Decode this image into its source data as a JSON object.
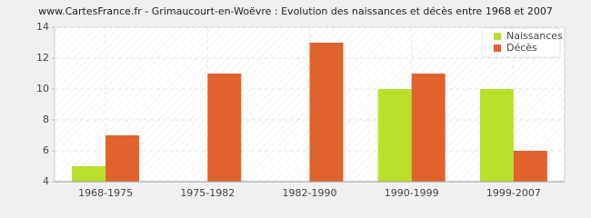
{
  "chart_data": {
    "type": "bar",
    "title": "www.CartesFrance.fr - Grimaucourt-en-Woëvre : Evolution des naissances et décès entre 1968 et 2007",
    "categories": [
      "1968-1975",
      "1975-1982",
      "1982-1990",
      "1990-1999",
      "1999-2007"
    ],
    "series": [
      {
        "name": "Naissances",
        "color": "#bbe02c",
        "values": [
          5,
          4,
          4,
          10,
          10
        ]
      },
      {
        "name": "Décès",
        "color": "#e0622d",
        "values": [
          7,
          11,
          13,
          11,
          6
        ]
      }
    ],
    "ylim": [
      4,
      14
    ],
    "yticks": [
      4,
      6,
      8,
      10,
      12,
      14
    ],
    "grid": true,
    "legend": "top-right"
  }
}
